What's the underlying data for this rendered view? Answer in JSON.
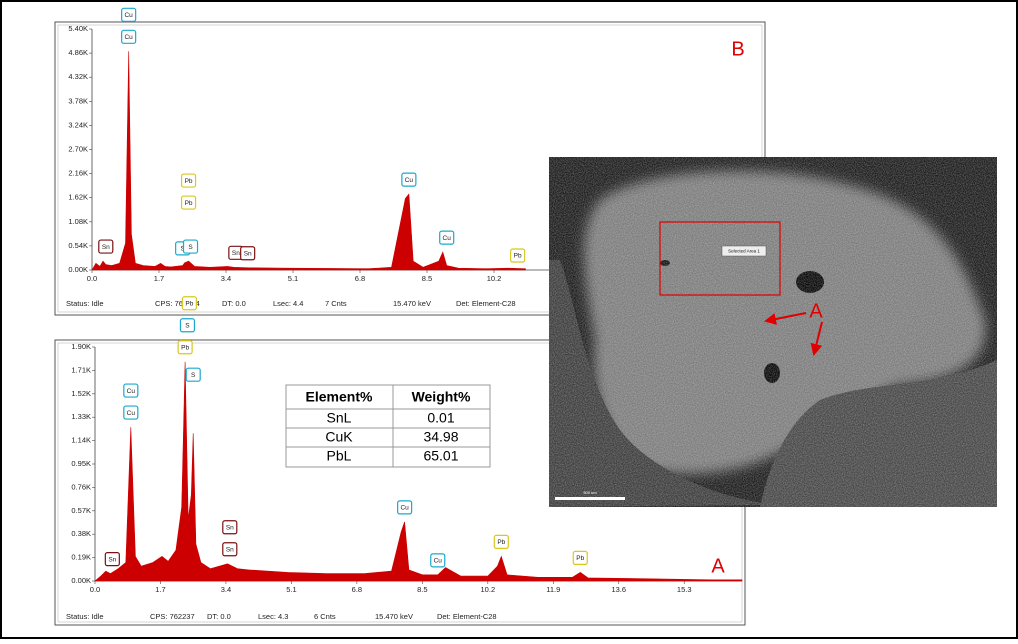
{
  "chart_data": [
    {
      "type": "area",
      "panel_label": "B",
      "color": "#cc0000",
      "x": [
        0.0,
        0.1,
        0.2,
        0.28,
        0.35,
        0.5,
        0.7,
        0.85,
        0.93,
        1.0,
        1.1,
        1.3,
        1.6,
        1.74,
        1.85,
        2.0,
        2.3,
        2.35,
        2.45,
        2.6,
        3.0,
        3.44,
        3.6,
        4.0,
        5.0,
        6.0,
        7.0,
        7.6,
        7.95,
        8.04,
        8.15,
        8.4,
        8.8,
        8.9,
        9.0,
        9.3,
        10.0,
        10.55,
        11.0
      ],
      "values": [
        0,
        150,
        80,
        200,
        120,
        100,
        150,
        600,
        4900,
        800,
        150,
        100,
        80,
        150,
        80,
        70,
        100,
        160,
        200,
        80,
        60,
        80,
        60,
        50,
        40,
        35,
        30,
        60,
        1600,
        1700,
        200,
        60,
        200,
        400,
        100,
        40,
        30,
        40,
        30
      ],
      "xlim": [
        0,
        17
      ],
      "ylim": [
        0,
        5400
      ],
      "xticks": [
        {
          "value": 0,
          "label": "0.0"
        },
        1.7,
        3.4,
        5.1,
        6.8,
        8.5,
        10.2
      ],
      "yticks": [
        {
          "value": 0,
          "label": "0.00K"
        },
        {
          "value": 540,
          "label": "0.54K"
        },
        {
          "value": 1080,
          "label": "1.08K"
        },
        {
          "value": 1620,
          "label": "1.62K"
        },
        {
          "value": 2160,
          "label": "2.16K"
        },
        {
          "value": 2700,
          "label": "2.70K"
        },
        {
          "value": 3240,
          "label": "3.24K"
        },
        {
          "value": 3780,
          "label": "3.78K"
        },
        {
          "value": 4320,
          "label": "4.32K"
        },
        {
          "value": 4860,
          "label": "4.86K"
        },
        {
          "value": 5400,
          "label": "5.40K"
        }
      ],
      "annotations": [
        {
          "text": "Sn",
          "x": 0.35,
          "color": "#7a1010"
        },
        {
          "text": "Cu",
          "x": 0.93,
          "color": "#19a9cc"
        },
        {
          "text": "Cu",
          "x": 0.93,
          "color": "#19a9cc"
        },
        {
          "text": "S",
          "x": 2.3,
          "color": "#19a9cc"
        },
        {
          "text": "S",
          "x": 2.5,
          "color": "#19a9cc"
        },
        {
          "text": "Pb",
          "x": 2.45,
          "color": "#d8c820"
        },
        {
          "text": "Pb",
          "x": 2.45,
          "color": "#d8c820"
        },
        {
          "text": "Sn",
          "x": 3.65,
          "color": "#7a1010"
        },
        {
          "text": "Sn",
          "x": 3.95,
          "color": "#7a1010"
        },
        {
          "text": "Cu",
          "x": 8.04,
          "color": "#19a9cc"
        },
        {
          "text": "Cu",
          "x": 9.0,
          "color": "#19a9cc"
        },
        {
          "text": "Pb",
          "x": 10.8,
          "color": "#d8c820"
        }
      ],
      "status": [
        "Status: Idle",
        "CPS: 766274",
        "DT: 0.0",
        "Lsec: 4.4",
        "7 Cnts",
        "15.470 keV",
        "Det: Element-C28"
      ]
    },
    {
      "type": "area",
      "panel_label": "A",
      "color": "#cc0000",
      "x": [
        0,
        0.15,
        0.28,
        0.4,
        0.6,
        0.8,
        0.93,
        1.05,
        1.2,
        1.5,
        1.74,
        1.9,
        2.1,
        2.25,
        2.34,
        2.42,
        2.5,
        2.55,
        2.62,
        2.75,
        3.0,
        3.44,
        3.7,
        4.0,
        5.0,
        6.0,
        7.0,
        7.7,
        7.95,
        8.04,
        8.15,
        8.5,
        8.9,
        9.1,
        9.5,
        10.2,
        10.45,
        10.55,
        10.7,
        11.5,
        12.4,
        12.6,
        12.8,
        14,
        15,
        16,
        16.8
      ],
      "values": [
        0,
        40,
        80,
        60,
        100,
        150,
        1250,
        200,
        120,
        150,
        200,
        160,
        250,
        600,
        1780,
        500,
        700,
        1200,
        300,
        150,
        100,
        140,
        100,
        90,
        70,
        60,
        60,
        80,
        400,
        480,
        90,
        50,
        50,
        110,
        40,
        40,
        120,
        200,
        50,
        30,
        30,
        70,
        25,
        20,
        15,
        10,
        10
      ],
      "xlim": [
        0,
        16.8
      ],
      "ylim": [
        0,
        1900
      ],
      "xticks": [
        {
          "value": 0,
          "label": "0.0"
        },
        1.7,
        3.4,
        5.1,
        6.8,
        8.5,
        10.2,
        11.9,
        13.6,
        15.3
      ],
      "yticks": [
        {
          "value": 0,
          "label": "0.00K"
        },
        {
          "value": 190,
          "label": "0.19K"
        },
        {
          "value": 380,
          "label": "0.38K"
        },
        {
          "value": 570,
          "label": "0.57K"
        },
        {
          "value": 760,
          "label": "0.76K"
        },
        {
          "value": 950,
          "label": "0.95K"
        },
        {
          "value": 1140,
          "label": "1.14K"
        },
        {
          "value": 1330,
          "label": "1.33K"
        },
        {
          "value": 1520,
          "label": "1.52K"
        },
        {
          "value": 1710,
          "label": "1.71K"
        },
        {
          "value": 1900,
          "label": "1.90K"
        }
      ],
      "annotations": [
        {
          "text": "Sn",
          "x": 0.45,
          "color": "#7a1010"
        },
        {
          "text": "Cu",
          "x": 0.93,
          "color": "#19a9cc"
        },
        {
          "text": "Cu",
          "x": 0.93,
          "color": "#19a9cc"
        },
        {
          "text": "Pb",
          "x": 2.34,
          "color": "#d8c820"
        },
        {
          "text": "S",
          "x": 2.4,
          "color": "#19a9cc"
        },
        {
          "text": "Pb",
          "x": 2.45,
          "color": "#d8c820"
        },
        {
          "text": "S",
          "x": 2.55,
          "color": "#19a9cc"
        },
        {
          "text": "Sn",
          "x": 3.5,
          "color": "#7a1010"
        },
        {
          "text": "Sn",
          "x": 3.5,
          "color": "#7a1010"
        },
        {
          "text": "Cu",
          "x": 8.04,
          "color": "#19a9cc"
        },
        {
          "text": "Cu",
          "x": 8.9,
          "color": "#19a9cc"
        },
        {
          "text": "Pb",
          "x": 10.55,
          "color": "#d8c820"
        },
        {
          "text": "Pb",
          "x": 12.6,
          "color": "#d8c820"
        }
      ],
      "status": [
        "Status: Idle",
        "CPS: 762237",
        "DT: 0.0",
        "Lsec: 4.3",
        "6 Cnts",
        "15.470 keV",
        "Det: Element-C28"
      ]
    }
  ],
  "table": {
    "header": [
      "Element%",
      "Weight%"
    ],
    "rows": [
      [
        "SnL",
        0.01
      ],
      [
        "CuK",
        34.98
      ],
      [
        "PbL",
        65.01
      ]
    ]
  },
  "image": {
    "region_label": "Selected Area 1",
    "marker": "A",
    "scale_bar": "500 um"
  }
}
